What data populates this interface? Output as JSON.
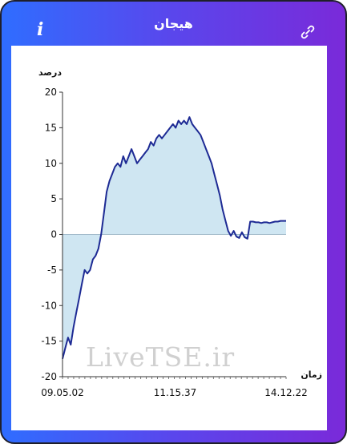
{
  "header": {
    "title": "هیجان",
    "info_label": "i"
  },
  "icons": {
    "info": "info-icon",
    "link": "link-icon"
  },
  "colors": {
    "gradient_start": "#2f6dff",
    "gradient_end": "#7a2ad9",
    "line": "#1d2a94",
    "fill": "#cfe6f2"
  },
  "watermark": "LiveTSE.ir",
  "chart_data": {
    "type": "area",
    "ylabel": "درصد",
    "xlabel": "زمان",
    "ylim": [
      -20,
      20
    ],
    "yticks": [
      20,
      15,
      10,
      5,
      0,
      -5,
      -10,
      -15,
      -20
    ],
    "xtick_labels": [
      "09.05.02",
      "11.15.37",
      "14.12.22"
    ],
    "grid": false,
    "series": [
      {
        "values": [
          -17.5,
          -16,
          -14.5,
          -15.5,
          -13,
          -11,
          -9,
          -7,
          -5,
          -5.5,
          -5,
          -3.5,
          -3,
          -2,
          0,
          3,
          6,
          7.5,
          8.5,
          9.5,
          10,
          9.5,
          11,
          10,
          11,
          12,
          11,
          10,
          10.5,
          11,
          11.5,
          12,
          13,
          12.5,
          13.5,
          14,
          13.5,
          14,
          14.5,
          15,
          15.5,
          15,
          16,
          15.5,
          16,
          15.5,
          16.5,
          15.5,
          15,
          14.5,
          14,
          13,
          12,
          11,
          10,
          8.5,
          7,
          5.5,
          3.5,
          2,
          0.5,
          -0.2,
          0.5,
          -0.3,
          -0.5,
          0.3,
          -0.4,
          -0.6,
          1.8,
          1.8,
          1.7,
          1.7,
          1.6,
          1.7,
          1.7,
          1.6,
          1.7,
          1.8,
          1.8,
          1.9,
          1.9,
          1.9
        ]
      }
    ]
  }
}
